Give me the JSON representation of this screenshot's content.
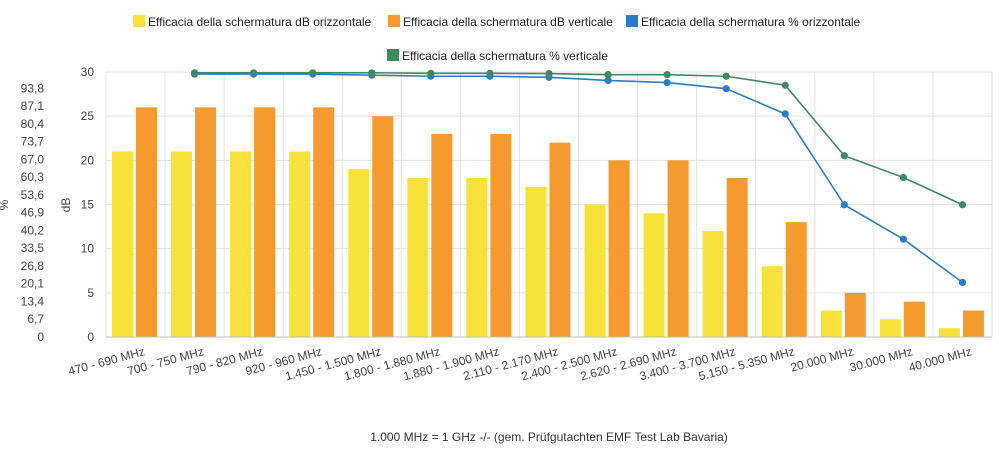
{
  "chart_data": {
    "type": "bar",
    "categories": [
      "470 - 690 MHz",
      "700 - 750 MHz",
      "790 - 820 MHz",
      "920 - 960 MHz",
      "1.450 - 1.500 MHz",
      "1.800 - 1.880 MHz",
      "1.880 - 1.900 MHz",
      "2.110 - 2.170 MHz",
      "2.400 - 2.500 MHz",
      "2.620 - 2.690 MHz",
      "3.400 - 3.700 MHz",
      "5.150 - 5.350 MHz",
      "20.000 MHz",
      "30.000 MHz",
      "40.000 MHz"
    ],
    "series": [
      {
        "name": "Efficacia della schermatura dB orizzontale",
        "axis": "dB",
        "kind": "bar",
        "color": "#f7e13a",
        "values": [
          21,
          21,
          21,
          21,
          19,
          18,
          18,
          17,
          15,
          14,
          12,
          8,
          3,
          2,
          1
        ]
      },
      {
        "name": "Efficacia della schermatura dB verticale",
        "axis": "dB",
        "kind": "bar",
        "color": "#f59a2e",
        "values": [
          26,
          26,
          26,
          26,
          25,
          23,
          23,
          22,
          20,
          20,
          18,
          13,
          5,
          4,
          3
        ]
      },
      {
        "name": "Efficacia della schermatura % orizzontale",
        "axis": "%",
        "kind": "line",
        "color": "#2a7dc4",
        "values": [
          null,
          99.2,
          99.2,
          99.2,
          98.8,
          98.4,
          98.4,
          98.0,
          96.8,
          96.0,
          93.7,
          84.2,
          49.9,
          36.9,
          20.6
        ]
      },
      {
        "name": "Efficacia della schermatura % verticale",
        "axis": "%",
        "kind": "line",
        "color": "#3e8a5f",
        "values": [
          null,
          99.7,
          99.7,
          99.7,
          99.7,
          99.5,
          99.5,
          99.4,
          99.0,
          99.0,
          98.4,
          95.0,
          68.4,
          60.2,
          49.9
        ]
      }
    ],
    "y_right": {
      "label": "dB",
      "ticks": [
        "0",
        "5",
        "10",
        "15",
        "20",
        "25",
        "30"
      ],
      "ylim": [
        0,
        30
      ]
    },
    "y_left": {
      "label": "%",
      "ticks": [
        "0",
        "6,7",
        "13,4",
        "20,1",
        "26,8",
        "33,5",
        "40,2",
        "46,9",
        "53,6",
        "60,3",
        "67,0",
        "73,7",
        "80,4",
        "87,1",
        "93,8"
      ],
      "ylim": [
        0,
        100
      ]
    },
    "legend_placement": "top",
    "grid": true,
    "footnote": "1.000 MHz = 1 GHz -/- (gem. Prüfgutachten EMF Test Lab Bavaria)"
  }
}
